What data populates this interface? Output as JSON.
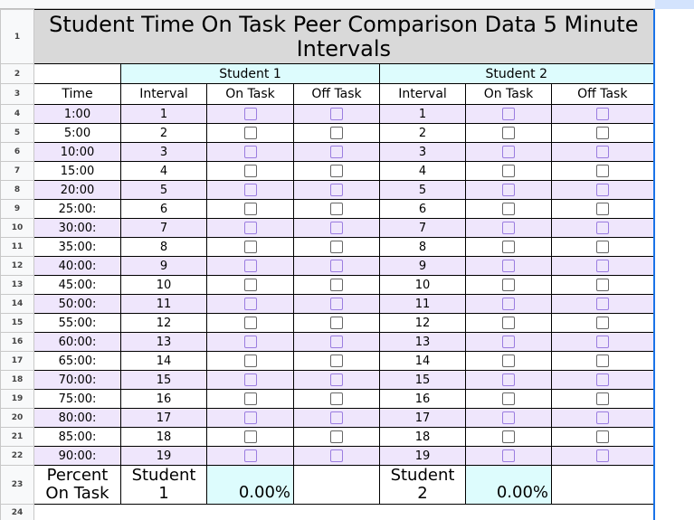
{
  "title": "Student Time On Task Peer Comparison Data 5 Minute Intervals",
  "title_row": 1,
  "group_header": {
    "row": 2,
    "student1": "Student 1",
    "student2": "Student 2"
  },
  "column_header": {
    "row": 3,
    "labels": [
      "Time",
      "Interval",
      "On Task",
      "Off Task",
      "Interval",
      "On Task",
      "Off Task"
    ]
  },
  "rows": [
    {
      "row": 4,
      "time": "1:00",
      "student1_interval": 1,
      "student2_interval": 1
    },
    {
      "row": 5,
      "time": "5:00",
      "student1_interval": 2,
      "student2_interval": 2
    },
    {
      "row": 6,
      "time": "10:00",
      "student1_interval": 3,
      "student2_interval": 3
    },
    {
      "row": 7,
      "time": "15:00",
      "student1_interval": 4,
      "student2_interval": 4
    },
    {
      "row": 8,
      "time": "20:00",
      "student1_interval": 5,
      "student2_interval": 5
    },
    {
      "row": 9,
      "time": "25:00:",
      "student1_interval": 6,
      "student2_interval": 6
    },
    {
      "row": 10,
      "time": "30:00:",
      "student1_interval": 7,
      "student2_interval": 7
    },
    {
      "row": 11,
      "time": "35:00:",
      "student1_interval": 8,
      "student2_interval": 8
    },
    {
      "row": 12,
      "time": "40:00:",
      "student1_interval": 9,
      "student2_interval": 9
    },
    {
      "row": 13,
      "time": "45:00:",
      "student1_interval": 10,
      "student2_interval": 10
    },
    {
      "row": 14,
      "time": "50:00:",
      "student1_interval": 11,
      "student2_interval": 11
    },
    {
      "row": 15,
      "time": "55:00:",
      "student1_interval": 12,
      "student2_interval": 12
    },
    {
      "row": 16,
      "time": "60:00:",
      "student1_interval": 13,
      "student2_interval": 13
    },
    {
      "row": 17,
      "time": "65:00:",
      "student1_interval": 14,
      "student2_interval": 14
    },
    {
      "row": 18,
      "time": "70:00:",
      "student1_interval": 15,
      "student2_interval": 15
    },
    {
      "row": 19,
      "time": "75:00:",
      "student1_interval": 16,
      "student2_interval": 16
    },
    {
      "row": 20,
      "time": "80:00:",
      "student1_interval": 17,
      "student2_interval": 17
    },
    {
      "row": 21,
      "time": "85:00:",
      "student1_interval": 18,
      "student2_interval": 18
    },
    {
      "row": 22,
      "time": "90:00:",
      "student1_interval": 19,
      "student2_interval": 19
    }
  ],
  "footer": {
    "row": 23,
    "label": "Percent On Task",
    "student1": {
      "name": "Student 1",
      "percent": "0.00%"
    },
    "student2": {
      "name": "Student 2",
      "percent": "0.00%"
    }
  },
  "last_row": 24
}
